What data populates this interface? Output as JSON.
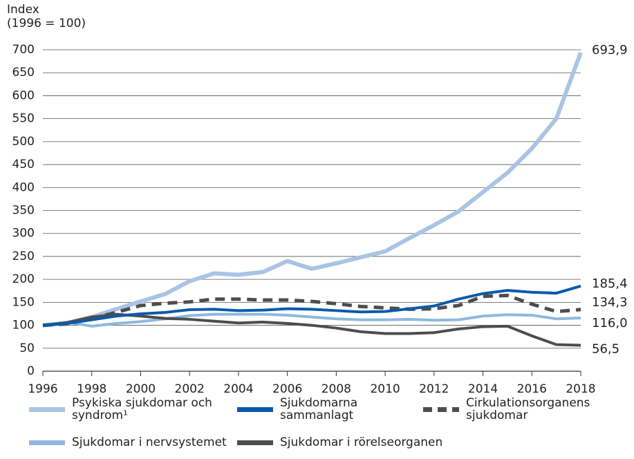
{
  "chart_data": {
    "type": "line",
    "y_label": [
      "Index",
      "(1996 = 100)"
    ],
    "x": [
      1996,
      1997,
      1998,
      1999,
      2000,
      2001,
      2002,
      2003,
      2004,
      2005,
      2006,
      2007,
      2008,
      2009,
      2010,
      2011,
      2012,
      2013,
      2014,
      2015,
      2016,
      2017,
      2018
    ],
    "xlim": [
      1996,
      2018
    ],
    "xticks": [
      1996,
      1998,
      2000,
      2002,
      2004,
      2006,
      2008,
      2010,
      2012,
      2014,
      2016,
      2018
    ],
    "ylim": [
      0,
      700
    ],
    "yticks": [
      0,
      50,
      100,
      150,
      200,
      250,
      300,
      350,
      400,
      450,
      500,
      550,
      600,
      650,
      700
    ],
    "grid": true,
    "series": [
      {
        "name": "Psykiska sjukdomar och syndrom¹",
        "color": "#a9c4e4",
        "dash": false,
        "values": [
          100,
          105,
          118,
          135,
          152,
          168,
          196,
          213,
          210,
          216,
          240,
          223,
          235,
          248,
          261,
          290,
          318,
          348,
          390,
          432,
          485,
          550,
          693.9
        ],
        "value_labels": [
          null,
          null,
          null,
          null,
          null,
          null,
          null,
          null,
          null,
          null,
          null,
          null,
          null,
          null,
          null,
          null,
          null,
          null,
          null,
          null,
          null,
          null,
          "693,9"
        ]
      },
      {
        "name": "Sjukdomarna sammanlagt",
        "color": "#0a5aaa",
        "dash": false,
        "values": [
          100,
          104,
          112,
          120,
          125,
          128,
          134,
          135,
          132,
          133,
          136,
          135,
          132,
          129,
          130,
          136,
          142,
          157,
          169,
          176,
          172,
          170,
          185.4
        ],
        "value_labels": [
          null,
          null,
          null,
          null,
          null,
          null,
          null,
          null,
          null,
          null,
          null,
          null,
          null,
          null,
          null,
          null,
          null,
          null,
          null,
          null,
          null,
          null,
          "185,4"
        ]
      },
      {
        "name": "Cirkulationsorganens sjukdomar",
        "color": "#4d4d4d",
        "dash": true,
        "values": [
          100,
          103,
          115,
          128,
          143,
          148,
          151,
          157,
          157,
          155,
          155,
          152,
          147,
          141,
          138,
          135,
          136,
          143,
          163,
          165,
          146,
          130,
          134.3
        ],
        "value_labels": [
          null,
          null,
          null,
          null,
          null,
          null,
          null,
          null,
          null,
          null,
          null,
          null,
          null,
          null,
          null,
          null,
          null,
          null,
          null,
          null,
          null,
          null,
          "134,3"
        ]
      },
      {
        "name": "Sjukdomar i nervsystemet",
        "color": "#8fb8e0",
        "dash": false,
        "values": [
          100,
          107,
          98,
          104,
          108,
          114,
          121,
          124,
          124,
          124,
          122,
          118,
          114,
          112,
          112,
          113,
          111,
          112,
          120,
          123,
          122,
          114,
          116.0
        ],
        "value_labels": [
          null,
          null,
          null,
          null,
          null,
          null,
          null,
          null,
          null,
          null,
          null,
          null,
          null,
          null,
          null,
          null,
          null,
          null,
          null,
          null,
          null,
          null,
          "116,0"
        ]
      },
      {
        "name": "Sjukdomar i rörelseorganen",
        "color": "#4d4d4d",
        "dash": false,
        "values": [
          100,
          106,
          118,
          124,
          120,
          115,
          113,
          109,
          105,
          107,
          104,
          100,
          94,
          86,
          82,
          82,
          84,
          92,
          97,
          98,
          77,
          58,
          56.5
        ],
        "value_labels": [
          null,
          null,
          null,
          null,
          null,
          null,
          null,
          null,
          null,
          null,
          null,
          null,
          null,
          null,
          null,
          null,
          null,
          null,
          null,
          null,
          null,
          null,
          "56,5"
        ]
      }
    ]
  }
}
